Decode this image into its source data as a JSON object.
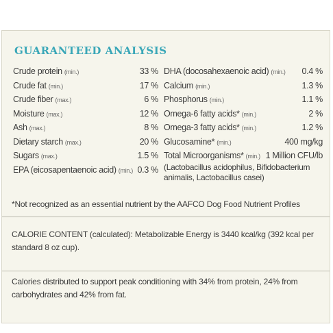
{
  "title": "GUARANTEED ANALYSIS",
  "left_rows": [
    {
      "name": "Crude protein",
      "qualifier": "(min.)",
      "value": "33 %"
    },
    {
      "name": "Crude fat",
      "qualifier": "(min.)",
      "value": "17 %"
    },
    {
      "name": "Crude fiber",
      "qualifier": "(max.)",
      "value": "6 %"
    },
    {
      "name": "Moisture",
      "qualifier": "(max.)",
      "value": "12 %"
    },
    {
      "name": "Ash",
      "qualifier": "(max.)",
      "value": "8 %"
    },
    {
      "name": "Dietary starch",
      "qualifier": "(max.)",
      "value": "20 %"
    },
    {
      "name": "Sugars",
      "qualifier": "(max.)",
      "value": "1.5 %"
    },
    {
      "name": "EPA (eicosapentaenoic acid)",
      "qualifier": "(min.)",
      "value": "0.3 %"
    }
  ],
  "right_rows": [
    {
      "name": "DHA (docosahexaenoic acid)",
      "qualifier": "(min.)",
      "value": "0.4 %"
    },
    {
      "name": "Calcium",
      "qualifier": "(min.)",
      "value": "1.3 %"
    },
    {
      "name": "Phosphorus",
      "qualifier": "(min.)",
      "value": "1.1 %"
    },
    {
      "name": "Omega-6 fatty acids*",
      "qualifier": "(min.)",
      "value": "2 %"
    },
    {
      "name": "Omega-3 fatty acids*",
      "qualifier": "(min.)",
      "value": "1.2 %"
    },
    {
      "name": "Glucosamine*",
      "qualifier": "(min.)",
      "value": "400 mg/kg"
    },
    {
      "name": "Total Microorganisms*",
      "qualifier": "(min.)",
      "value": "1 Million CFU/lb",
      "note": "(Lactobacillus acidophilus, Bifidobacterium animalis, Lactobacillus casei)"
    }
  ],
  "footnote": "*Not recognized as an essential nutrient by the AAFCO Dog Food Nutrient Profiles",
  "calorie_content": "CALORIE CONTENT (calculated): Metabolizable Energy is 3440 kcal/kg (392 kcal per standard 8 oz cup).",
  "calorie_distribution": "Calories distributed to support peak conditioning with 34% from protein, 24% from carbohydrates and 42% from fat."
}
